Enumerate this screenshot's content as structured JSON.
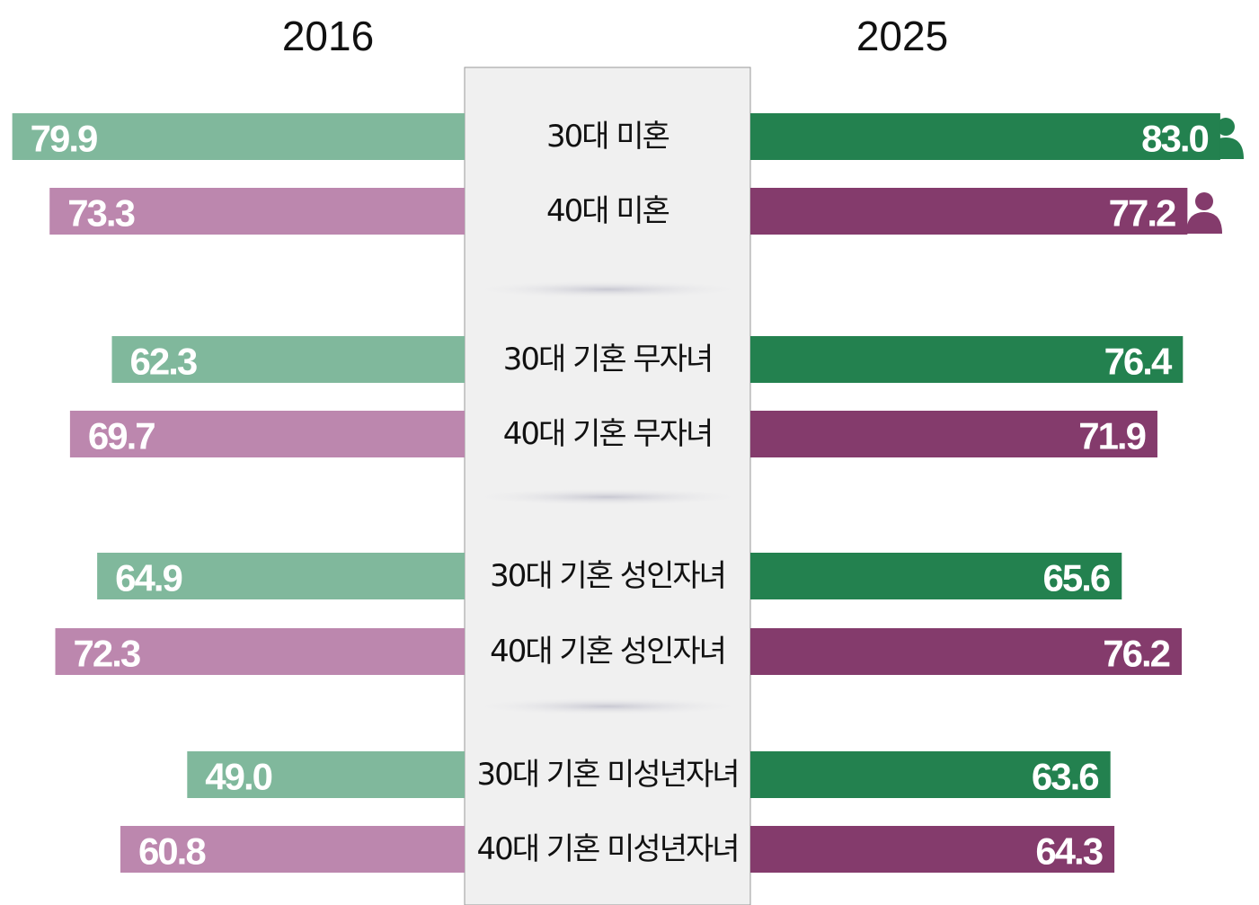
{
  "chart_data": {
    "type": "butterfly",
    "categories": [
      "30대 미혼",
      "40대 미혼",
      "30대 기혼 무자녀",
      "40대 기혼 무자녀",
      "30대 기혼 성인자녀",
      "40대 기혼 성인자녀",
      "30대 기혼 미성년자녀",
      "40대 기혼 미성년자녀"
    ],
    "series": [
      {
        "name": "2016",
        "side": "left",
        "colors": [
          "#80b89c",
          "#bc87ae",
          "#80b89c",
          "#bc87ae",
          "#80b89c",
          "#bc87ae",
          "#80b89c",
          "#bc87ae"
        ],
        "values": [
          79.9,
          73.3,
          62.3,
          69.7,
          64.9,
          72.3,
          49.0,
          60.8
        ],
        "value_labels": [
          "79.9",
          "73.3",
          "62.3",
          "69.7",
          "64.9",
          "72.3",
          "49.0",
          "60.8"
        ]
      },
      {
        "name": "2025",
        "side": "right",
        "colors": [
          "#23814f",
          "#843b6c",
          "#23814f",
          "#843b6c",
          "#23814f",
          "#843b6c",
          "#23814f",
          "#843b6c"
        ],
        "values": [
          83.0,
          77.2,
          76.4,
          71.9,
          65.6,
          76.2,
          63.6,
          64.3
        ],
        "value_labels": [
          "83.0",
          "77.2",
          "76.4",
          "71.9",
          "65.6",
          "76.2",
          "63.6",
          "64.3"
        ]
      }
    ]
  }
}
